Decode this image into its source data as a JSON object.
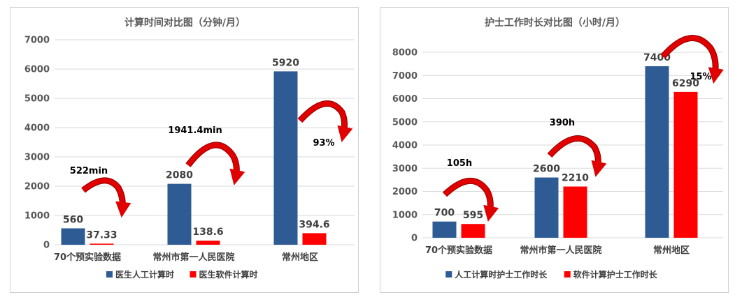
{
  "colors": {
    "series_blue": "#2E5B94",
    "series_red": "#FF0000",
    "arrow_red": "#E00000"
  },
  "chart_data": [
    {
      "type": "bar",
      "title": "计算时间对比图（分钟/月）",
      "xlabel": "",
      "ylabel": "",
      "ylim": [
        0,
        7000
      ],
      "yticks": [
        0,
        1000,
        2000,
        3000,
        4000,
        5000,
        6000,
        7000
      ],
      "grid": true,
      "legend_position": "bottom",
      "categories": [
        "70个预实验数据",
        "常州市第一人民医院",
        "常州地区"
      ],
      "series": [
        {
          "name": "医生人工计算时",
          "color": "#2E5B94",
          "values": [
            560,
            2080,
            5920
          ],
          "labels": [
            "560",
            "2080",
            "5920"
          ]
        },
        {
          "name": "医生软件计算时",
          "color": "#FF0000",
          "values": [
            37.33,
            138.6,
            394.6
          ],
          "labels": [
            "37.33",
            "138.6",
            "394.6"
          ]
        }
      ],
      "annotations": [
        "522min",
        "1941.4min",
        "93%"
      ]
    },
    {
      "type": "bar",
      "title": "护士工作时长对比图（小时/月）",
      "xlabel": "",
      "ylabel": "",
      "ylim": [
        0,
        8000
      ],
      "yticks": [
        0,
        1000,
        2000,
        3000,
        4000,
        5000,
        6000,
        7000,
        8000
      ],
      "grid": true,
      "legend_position": "bottom",
      "categories": [
        "70个预实验数据",
        "常州市第一人民医院",
        "常州地区"
      ],
      "series": [
        {
          "name": "人工计算时护士工作时长",
          "color": "#2E5B94",
          "values": [
            700,
            2600,
            7400
          ],
          "labels": [
            "700",
            "2600",
            "7400"
          ]
        },
        {
          "name": "软件计算护士工作时长",
          "color": "#FF0000",
          "values": [
            595,
            2210,
            6290
          ],
          "labels": [
            "595",
            "2210",
            "6290"
          ]
        }
      ],
      "annotations": [
        "105h",
        "390h",
        "15%"
      ]
    }
  ]
}
